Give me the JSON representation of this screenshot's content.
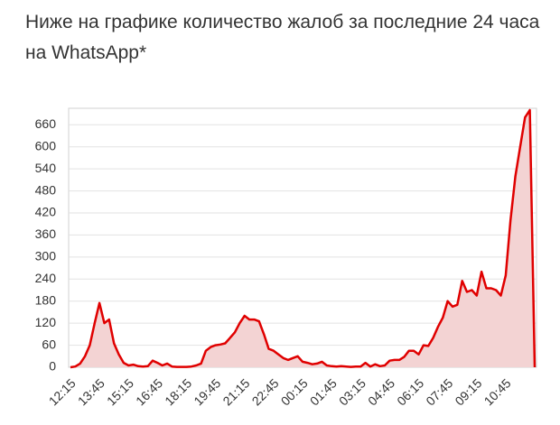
{
  "chart_data": {
    "type": "line",
    "title": "Ниже на графике количество жалоб за последние 24 часа на WhatsApp*",
    "categories": [
      "12:15",
      null,
      null,
      null,
      null,
      null,
      "13:45",
      null,
      null,
      null,
      null,
      null,
      "15:15",
      null,
      null,
      null,
      null,
      null,
      "16:45",
      null,
      null,
      null,
      null,
      null,
      "18:15",
      null,
      null,
      null,
      null,
      null,
      "19:45",
      null,
      null,
      null,
      null,
      null,
      "21:15",
      null,
      null,
      null,
      null,
      null,
      "22:45",
      null,
      null,
      null,
      null,
      null,
      "00:15",
      null,
      null,
      null,
      null,
      null,
      "01:45",
      null,
      null,
      null,
      null,
      null,
      "03:15",
      null,
      null,
      null,
      null,
      null,
      "04:45",
      null,
      null,
      null,
      null,
      null,
      "06:15",
      null,
      null,
      null,
      null,
      null,
      "07:45",
      null,
      null,
      null,
      null,
      null,
      "09:15",
      null,
      null,
      null,
      null,
      null,
      "10:45",
      null,
      null,
      null,
      null,
      null,
      null
    ],
    "series": [
      {
        "color": "#e00000",
        "fill": "#f3d3d3",
        "values": [
          0,
          2,
          10,
          30,
          60,
          120,
          175,
          120,
          130,
          65,
          35,
          12,
          5,
          7,
          3,
          2,
          3,
          18,
          12,
          5,
          10,
          2,
          1,
          1,
          1,
          2,
          5,
          10,
          45,
          55,
          60,
          62,
          65,
          80,
          95,
          120,
          140,
          130,
          130,
          125,
          90,
          50,
          45,
          35,
          25,
          20,
          25,
          30,
          15,
          12,
          8,
          10,
          15,
          5,
          3,
          2,
          3,
          2,
          1,
          2,
          2,
          12,
          2,
          8,
          3,
          5,
          18,
          20,
          20,
          28,
          45,
          45,
          35,
          60,
          58,
          80,
          110,
          135,
          180,
          165,
          170,
          235,
          205,
          210,
          195,
          260,
          215,
          215,
          210,
          195,
          250,
          400,
          520,
          600,
          680,
          700,
          0
        ]
      }
    ],
    "ylim": [
      0,
      700
    ],
    "yticks": [
      0,
      60,
      120,
      180,
      240,
      300,
      360,
      420,
      480,
      540,
      600,
      660
    ],
    "grid": true
  }
}
